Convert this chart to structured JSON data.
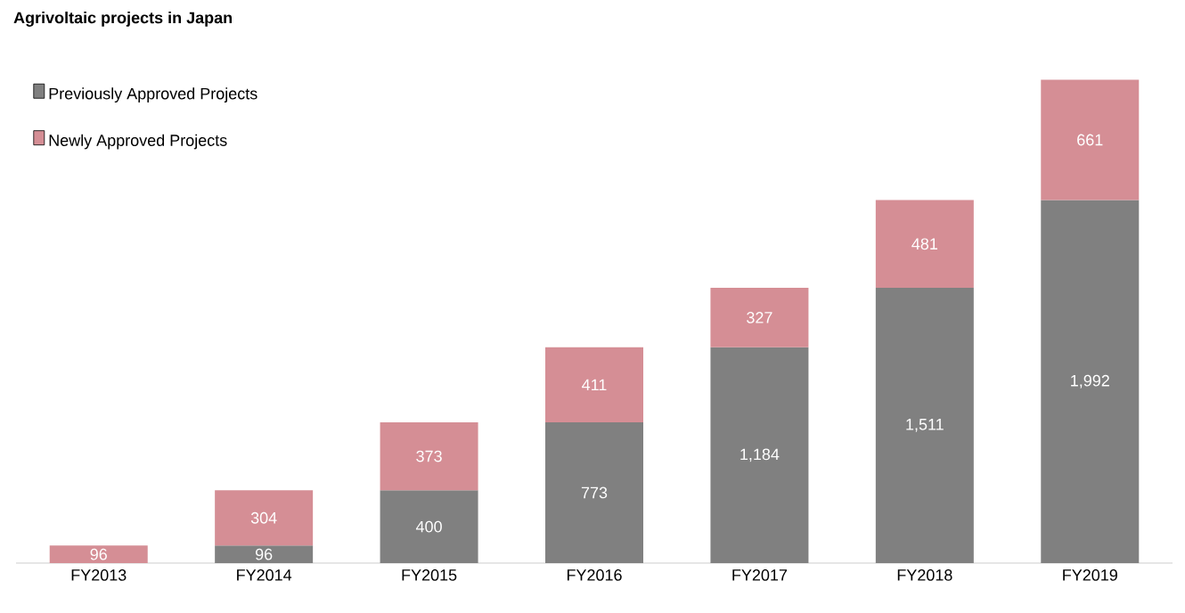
{
  "chart_data": {
    "type": "bar",
    "title": "Agrivoltaic projects in Japan",
    "stacked": true,
    "categories": [
      "FY2013",
      "FY2014",
      "FY2015",
      "FY2016",
      "FY2017",
      "FY2018",
      "FY2019"
    ],
    "series": [
      {
        "name": "Previously Approved Projects",
        "color": "#808080",
        "values": [
          null,
          96,
          400,
          773,
          1184,
          1511,
          1992
        ],
        "value_labels": [
          null,
          "96",
          "400",
          "773",
          "1,184",
          "1,511",
          "1,992"
        ]
      },
      {
        "name": "Newly Approved Projects",
        "color": "#d58e95",
        "values": [
          96,
          304,
          373,
          411,
          327,
          481,
          661
        ],
        "value_labels": [
          "96",
          "304",
          "373",
          "411",
          "327",
          "481",
          "661"
        ]
      }
    ],
    "legend": "top left",
    "grid": false
  }
}
